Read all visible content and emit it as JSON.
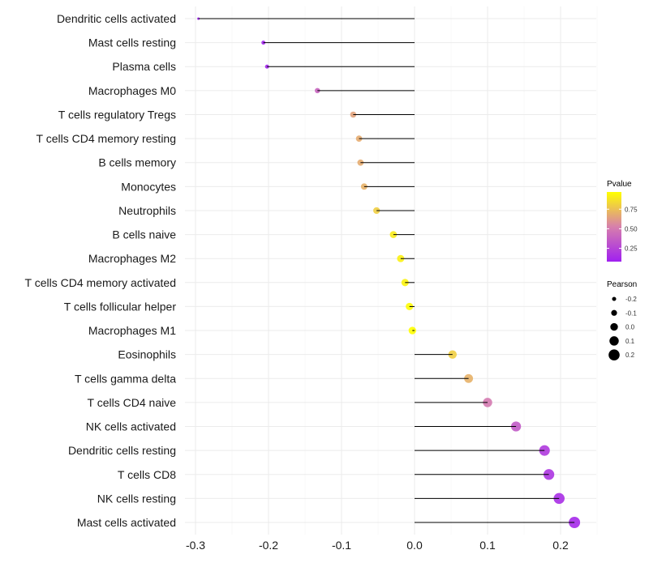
{
  "chart_data": {
    "type": "lollipop",
    "title": "",
    "xlabel": "",
    "ylabel": "",
    "xlim": [
      -0.33,
      0.25
    ],
    "xticks": [
      -0.3,
      -0.2,
      -0.1,
      0.0,
      0.1,
      0.2
    ],
    "xtick_labels": [
      "-0.3",
      "-0.2",
      "-0.1",
      "0.0",
      "0.1",
      "0.2"
    ],
    "categories": [
      "Dendritic cells activated",
      "Mast cells resting",
      "Plasma cells",
      "Macrophages M0",
      "T cells regulatory  Tregs ",
      "T cells CD4 memory resting",
      "B cells memory",
      "Monocytes",
      "Neutrophils",
      "B cells naive",
      "Macrophages M2",
      "T cells CD4 memory activated",
      "T cells follicular helper",
      "Macrophages M1",
      "Eosinophils",
      "T cells gamma delta",
      "T cells CD4 naive",
      "NK cells activated",
      "Dendritic cells resting",
      "T cells CD8",
      "NK cells resting",
      "Mast cells activated"
    ],
    "pearson": [
      -0.296,
      -0.207,
      -0.202,
      -0.133,
      -0.084,
      -0.076,
      -0.074,
      -0.069,
      -0.052,
      -0.029,
      -0.019,
      -0.013,
      -0.007,
      -0.003,
      0.052,
      0.074,
      0.1,
      0.139,
      0.178,
      0.184,
      0.198,
      0.219
    ],
    "pvalue": [
      0.05,
      0.1,
      0.1,
      0.4,
      0.65,
      0.68,
      0.68,
      0.7,
      0.8,
      0.9,
      0.92,
      0.93,
      0.96,
      0.98,
      0.8,
      0.7,
      0.5,
      0.35,
      0.2,
      0.18,
      0.15,
      0.12
    ],
    "legend": {
      "color": {
        "title": "Pvalue",
        "labels": [
          "0.75",
          "0.50",
          "0.25"
        ],
        "values": [
          0.75,
          0.5,
          0.25
        ],
        "range": [
          0.08,
          0.97
        ],
        "low_color": "#a020f0",
        "mid_color": "#d77fac",
        "high_color": "#ffff00"
      },
      "size": {
        "title": "Pearson",
        "labels": [
          "-0.2",
          "-0.1",
          "0.0",
          "0.1",
          "0.2"
        ],
        "values": [
          -0.2,
          -0.1,
          0.0,
          0.1,
          0.2
        ]
      },
      "placement": "right"
    },
    "grid": true
  }
}
